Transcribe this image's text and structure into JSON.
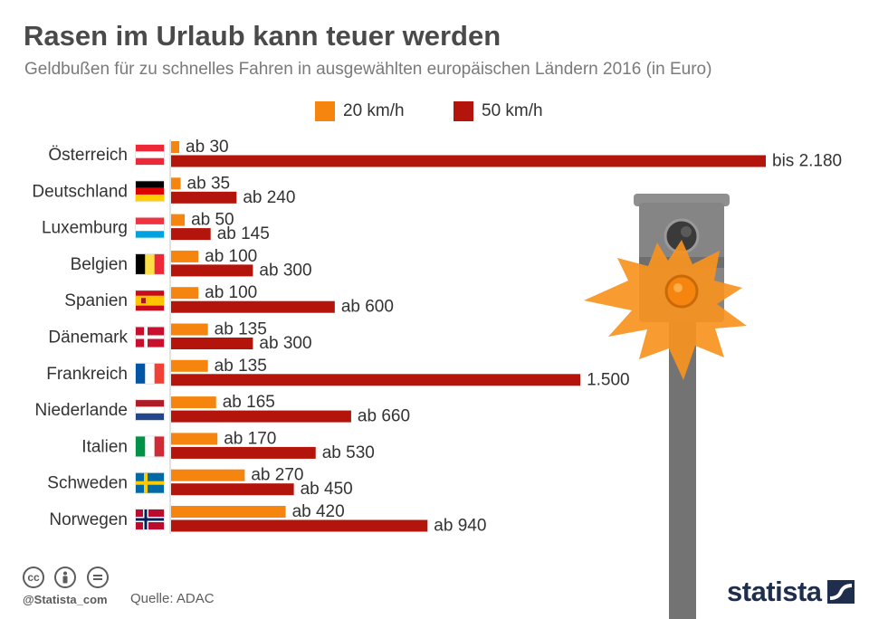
{
  "header": {
    "title": "Rasen im Urlaub kann teuer werden",
    "subtitle": "Geldbußen für zu schnelles Fahren in ausgewählten europäischen Ländern 2016 (in Euro)"
  },
  "colors": {
    "kmh20": "#f5850f",
    "kmh50": "#b3140b",
    "text": "#333333"
  },
  "chart_data": {
    "type": "bar",
    "orientation": "horizontal",
    "title": "Rasen im Urlaub kann teuer werden",
    "subtitle": "Geldbußen für zu schnelles Fahren in ausgewählten europäischen Ländern 2016 (in Euro)",
    "legend_position": "top",
    "grid": false,
    "xlim": [
      0,
      2180
    ],
    "categories": [
      "Österreich",
      "Deutschland",
      "Luxemburg",
      "Belgien",
      "Spanien",
      "Dänemark",
      "Frankreich",
      "Niederlande",
      "Italien",
      "Schweden",
      "Norwegen"
    ],
    "series": [
      {
        "name": "20 km/h",
        "color": "#f5850f",
        "values": [
          30,
          35,
          50,
          100,
          100,
          135,
          135,
          165,
          170,
          270,
          420
        ],
        "labels": [
          "ab 30",
          "ab 35",
          "ab 50",
          "ab 100",
          "ab 100",
          "ab 135",
          "ab 135",
          "ab 165",
          "ab 170",
          "ab 270",
          "ab 420"
        ]
      },
      {
        "name": "50 km/h",
        "color": "#b3140b",
        "values": [
          2180,
          240,
          145,
          300,
          600,
          300,
          1500,
          660,
          530,
          450,
          940
        ],
        "labels": [
          "bis 2.180",
          "ab 240",
          "ab 145",
          "ab 300",
          "ab 600",
          "ab 300",
          "1.500",
          "ab 660",
          "ab 530",
          "ab 450",
          "ab 940"
        ]
      }
    ]
  },
  "flags": [
    {
      "country": "Österreich",
      "icon": "flag-austria-icon"
    },
    {
      "country": "Deutschland",
      "icon": "flag-germany-icon"
    },
    {
      "country": "Luxemburg",
      "icon": "flag-luxembourg-icon"
    },
    {
      "country": "Belgien",
      "icon": "flag-belgium-icon"
    },
    {
      "country": "Spanien",
      "icon": "flag-spain-icon"
    },
    {
      "country": "Dänemark",
      "icon": "flag-denmark-icon"
    },
    {
      "country": "Frankreich",
      "icon": "flag-france-icon"
    },
    {
      "country": "Niederlande",
      "icon": "flag-netherlands-icon"
    },
    {
      "country": "Italien",
      "icon": "flag-italy-icon"
    },
    {
      "country": "Schweden",
      "icon": "flag-sweden-icon"
    },
    {
      "country": "Norwegen",
      "icon": "flag-norway-icon"
    }
  ],
  "decoration": {
    "illustration_icon": "speed-camera-flash-icon"
  },
  "footer": {
    "handle": "@Statista_com",
    "source": "Quelle: ADAC",
    "brand": "statista",
    "license_icons": [
      "cc-icon",
      "attribution-icon",
      "no-derivatives-icon"
    ]
  }
}
